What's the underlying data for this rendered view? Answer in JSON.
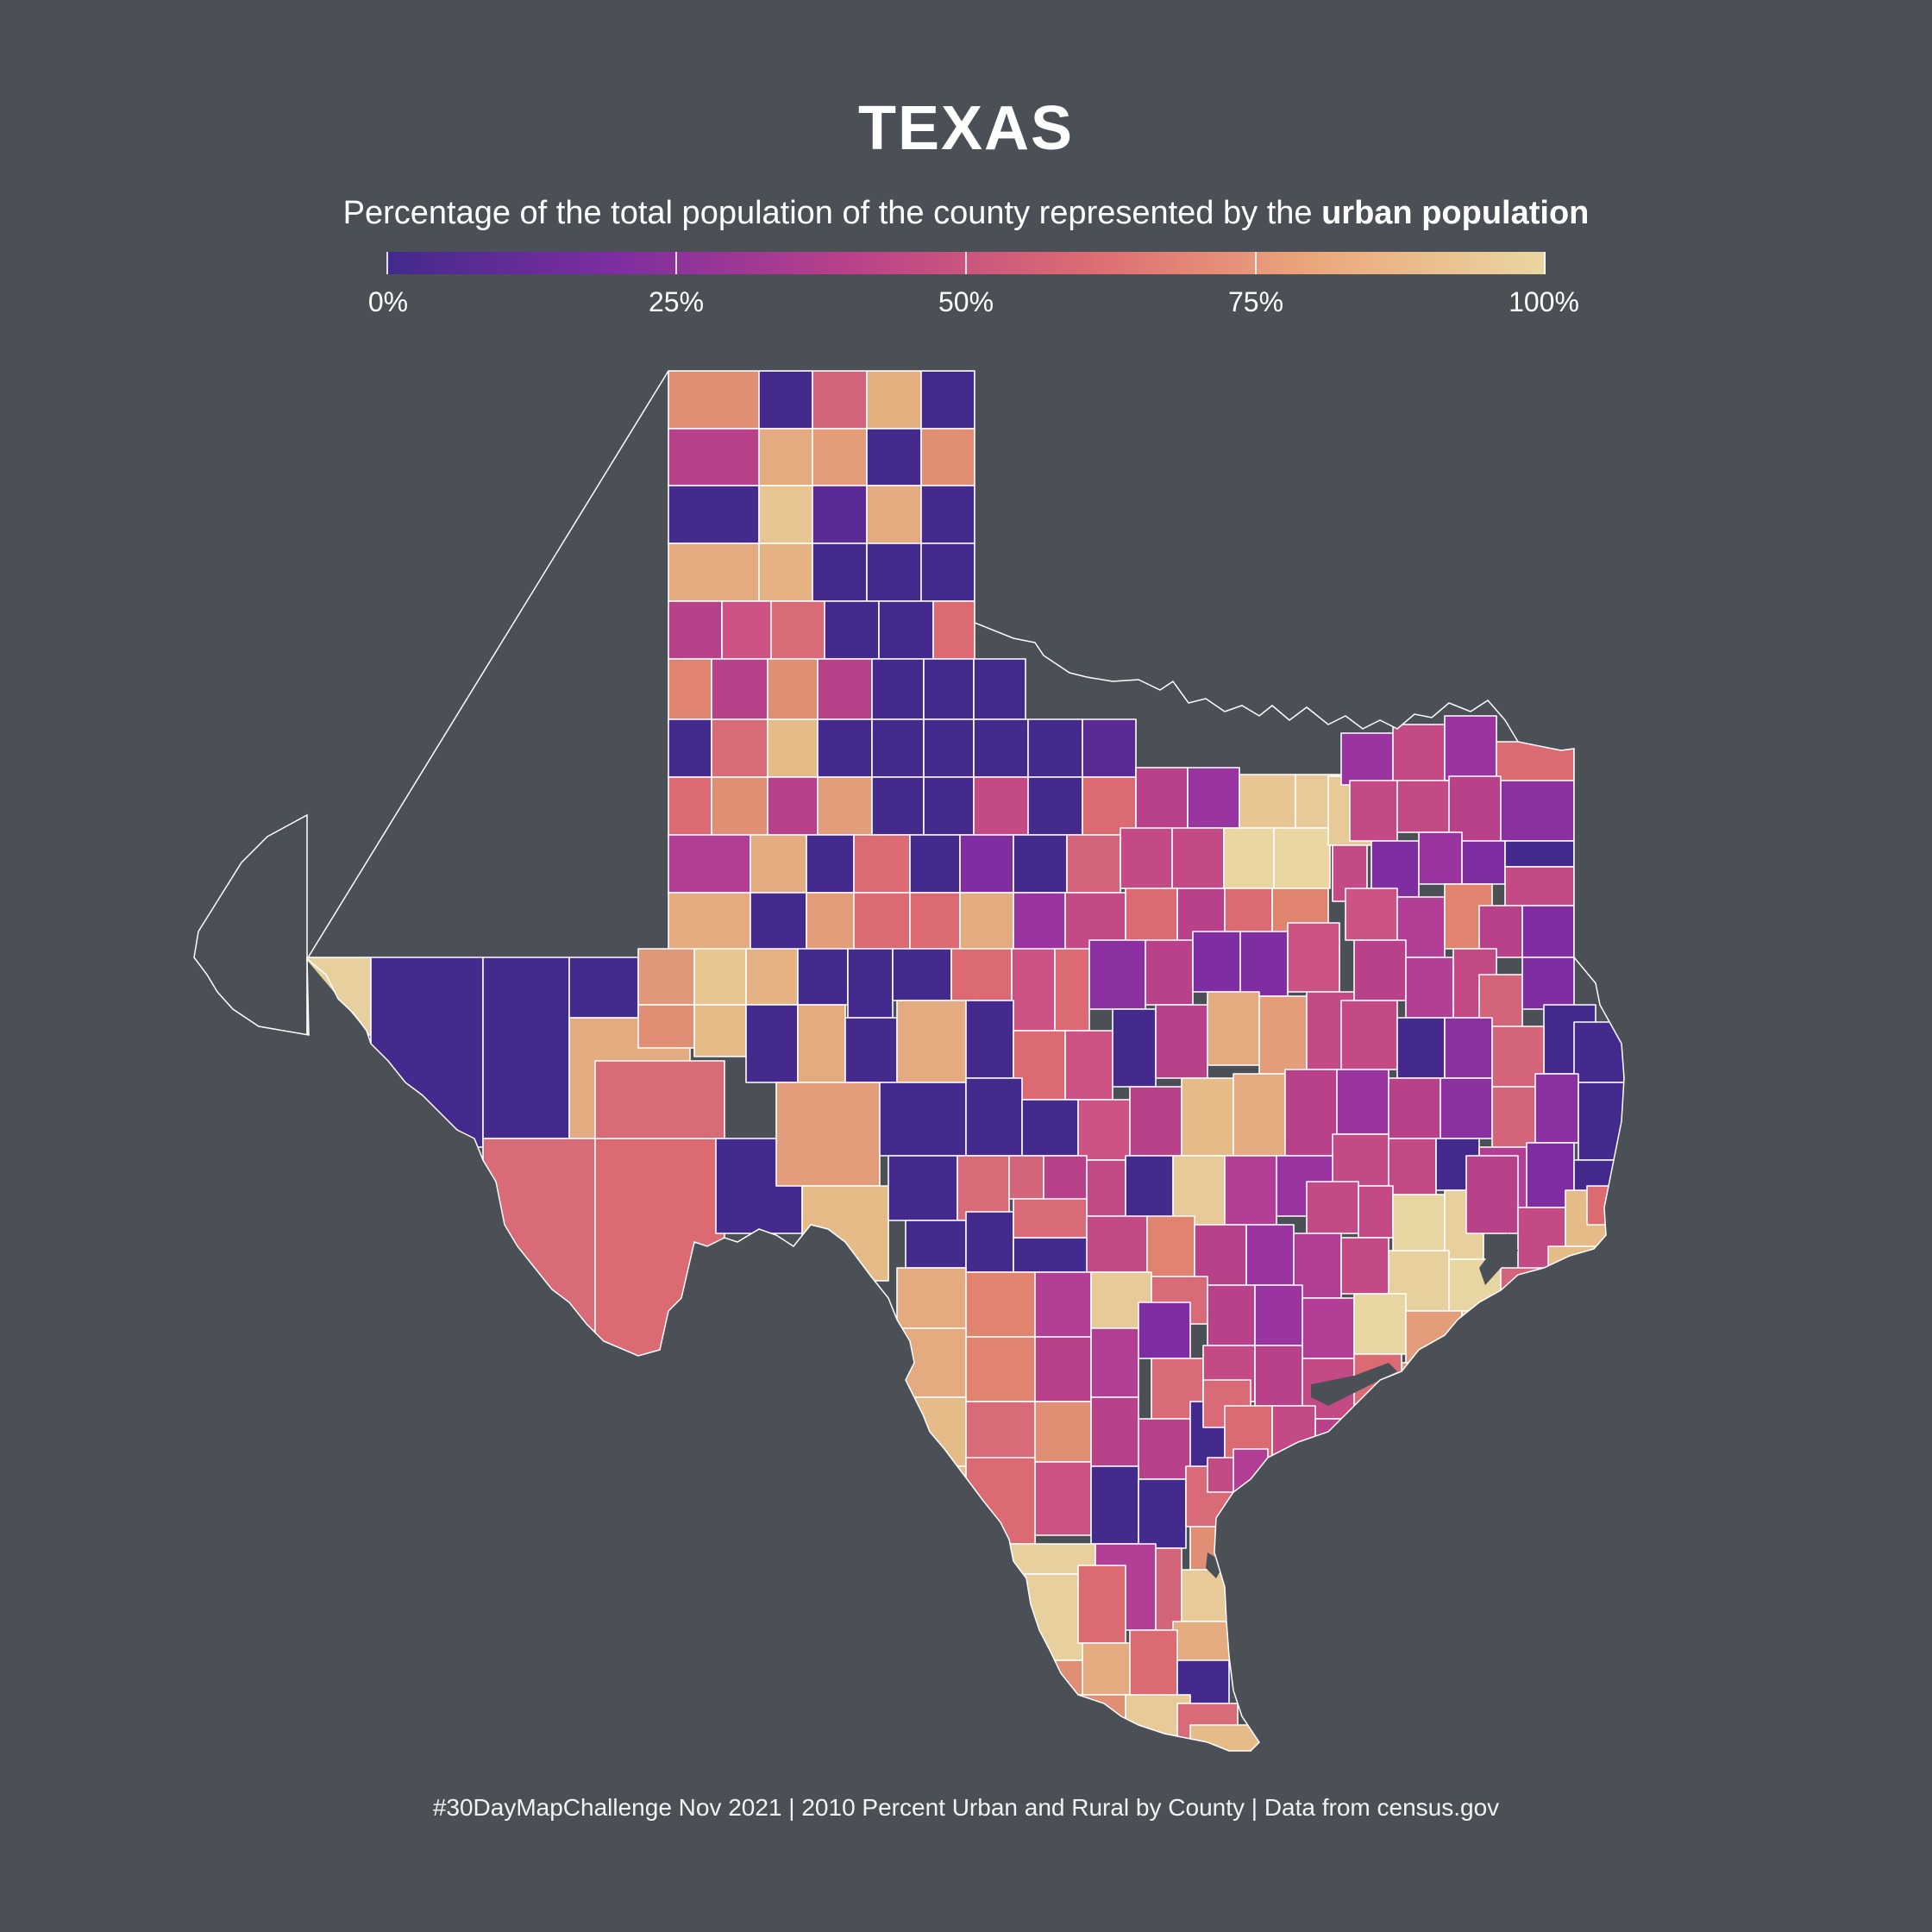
{
  "title": "TEXAS",
  "subtitle": {
    "prefix": "Percentage of the total population of the county represented by the ",
    "bold": "urban population"
  },
  "legend": {
    "min": 0,
    "max": 100,
    "ticks": [
      0,
      25,
      50,
      75,
      100
    ],
    "tick_labels": [
      "0%",
      "25%",
      "50%",
      "75%",
      "100%"
    ],
    "colors": [
      "#432a8c",
      "#7e2ea0",
      "#b9418a",
      "#dc6a72",
      "#eba77c",
      "#ead6a2"
    ]
  },
  "caption": "#30DayMapChallenge Nov 2021 | 2010 Percent Urban and Rural by County | Data from census.gov",
  "map_data": {
    "type": "choropleth",
    "region": "Texas counties",
    "variable": "percent urban population (2010)",
    "sample_values_percent": [
      70,
      2,
      50,
      80,
      2,
      35,
      78,
      72,
      2,
      70,
      2,
      88,
      10,
      78,
      2,
      78,
      84,
      2,
      2,
      2,
      30,
      45,
      55,
      2,
      2,
      60,
      70,
      35,
      72,
      35,
      2,
      2,
      2,
      2,
      52,
      85,
      2,
      2,
      2,
      2,
      2,
      10,
      60,
      70,
      40,
      75,
      2,
      2,
      45,
      2,
      65,
      30,
      78,
      2,
      65,
      2,
      18,
      2,
      80,
      2,
      78,
      62,
      68,
      75,
      20,
      35,
      100
    ]
  }
}
